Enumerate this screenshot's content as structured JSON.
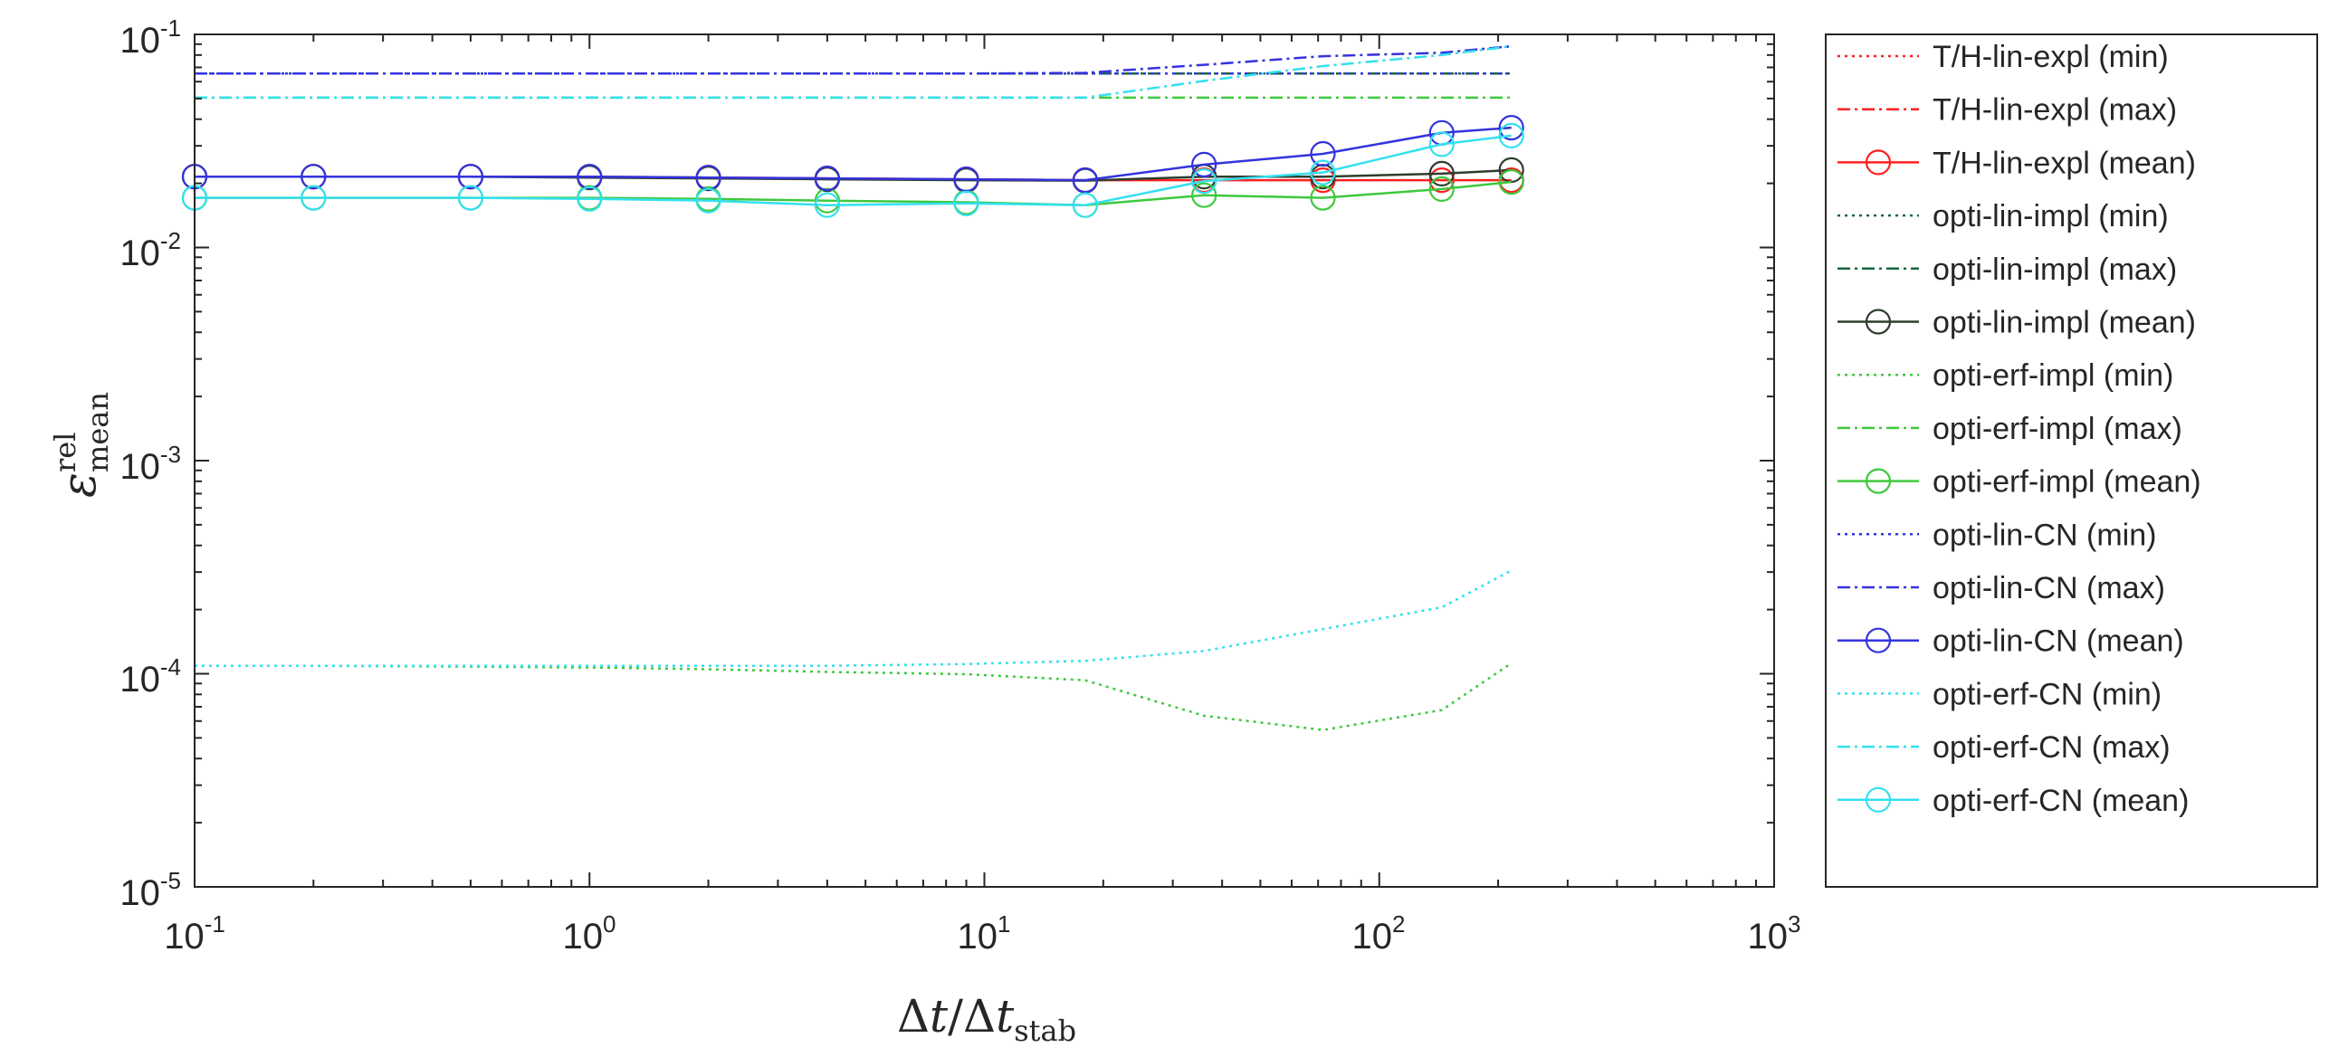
{
  "chart_data": {
    "type": "line",
    "x_scale": "log",
    "y_scale": "log",
    "xlim": [
      0.1,
      1000
    ],
    "ylim": [
      1e-05,
      0.1
    ],
    "x_ticks": [
      {
        "base": "10",
        "exp": "-1",
        "value": 0.1
      },
      {
        "base": "10",
        "exp": "0",
        "value": 1
      },
      {
        "base": "10",
        "exp": "1",
        "value": 10
      },
      {
        "base": "10",
        "exp": "2",
        "value": 100
      },
      {
        "base": "10",
        "exp": "3",
        "value": 1000
      }
    ],
    "y_ticks": [
      {
        "base": "10",
        "exp": "-1",
        "value": 0.1
      },
      {
        "base": "10",
        "exp": "-2",
        "value": 0.01
      },
      {
        "base": "10",
        "exp": "-3",
        "value": 0.001
      },
      {
        "base": "10",
        "exp": "-4",
        "value": 0.0001
      },
      {
        "base": "10",
        "exp": "-5",
        "value": 1e-05
      }
    ],
    "xlabel": {
      "delta1": "Δ",
      "t1": "t",
      "slash": "/",
      "delta2": "Δ",
      "t2": "t",
      "sub": "stab"
    },
    "ylabel": {
      "symbol": "ε",
      "sup": "rel",
      "sub": "mean"
    },
    "legend_position": "outside-right",
    "x_data": [
      0.1,
      0.2,
      0.5,
      1,
      2,
      4,
      9,
      18,
      36,
      72,
      144,
      216
    ],
    "series": [
      {
        "name": "T/H-lin-expl (min)",
        "color": "#ff2020",
        "style": "dotted",
        "marker": false,
        "values": [
          0.0655,
          0.0655,
          0.0655,
          0.0655,
          0.0655,
          0.0655,
          0.0655,
          0.0655,
          0.0655,
          0.0655,
          0.0655,
          0.0655
        ]
      },
      {
        "name": "T/H-lin-expl (max)",
        "color": "#ff2020",
        "style": "dashdot",
        "marker": false,
        "values": [
          0.0655,
          0.0655,
          0.0655,
          0.0655,
          0.0655,
          0.0655,
          0.0655,
          0.0655,
          0.0655,
          0.0655,
          0.0655,
          0.0655
        ]
      },
      {
        "name": "T/H-lin-expl (mean)",
        "color": "#ff2020",
        "style": "solid",
        "marker": true,
        "values": [
          0.0215,
          0.0215,
          0.0215,
          0.0215,
          0.0213,
          0.0211,
          0.0209,
          0.0207,
          0.0207,
          0.0207,
          0.0207,
          0.0207
        ]
      },
      {
        "name": "opti-lin-impl (min)",
        "color": "#1a6640",
        "style": "dotted",
        "marker": false,
        "values": [
          0.0655,
          0.0655,
          0.0655,
          0.0655,
          0.0655,
          0.0655,
          0.0655,
          0.0655,
          0.0655,
          0.0655,
          0.0655,
          0.0655
        ]
      },
      {
        "name": "opti-lin-impl (max)",
        "color": "#1a6640",
        "style": "dashdot",
        "marker": false,
        "values": [
          0.0655,
          0.0655,
          0.0655,
          0.0655,
          0.0655,
          0.0655,
          0.0655,
          0.0655,
          0.0655,
          0.0655,
          0.0655,
          0.0655
        ]
      },
      {
        "name": "opti-lin-impl (mean)",
        "color": "#2f3d2f",
        "style": "solid",
        "marker": true,
        "values": [
          0.0215,
          0.0215,
          0.0215,
          0.0213,
          0.0211,
          0.0209,
          0.0207,
          0.0206,
          0.0215,
          0.0215,
          0.0222,
          0.0231
        ]
      },
      {
        "name": "opti-erf-impl (min)",
        "color": "#3ec93e",
        "style": "dotted",
        "marker": false,
        "values": [
          0.000109,
          0.000109,
          0.000108,
          0.000107,
          0.000105,
          0.000102,
          9.95e-05,
          9.32e-05,
          6.35e-05,
          5.45e-05,
          6.75e-05,
          0.000112
        ]
      },
      {
        "name": "opti-erf-impl (max)",
        "color": "#3ec93e",
        "style": "dashdot",
        "marker": false,
        "values": [
          0.0505,
          0.0505,
          0.0505,
          0.0505,
          0.0505,
          0.0505,
          0.0505,
          0.0505,
          0.0505,
          0.0505,
          0.0505,
          0.0505
        ]
      },
      {
        "name": "opti-erf-impl (mean)",
        "color": "#3ec93e",
        "style": "solid",
        "marker": true,
        "values": [
          0.0171,
          0.0171,
          0.0171,
          0.0171,
          0.0169,
          0.0166,
          0.0163,
          0.0158,
          0.0176,
          0.0171,
          0.0188,
          0.0203
        ]
      },
      {
        "name": "opti-lin-CN (min)",
        "color": "#3333dd",
        "style": "dotted",
        "marker": false,
        "values": [
          0.0655,
          0.0655,
          0.0655,
          0.0655,
          0.0655,
          0.0655,
          0.0655,
          0.0655,
          0.0655,
          0.0655,
          0.0655,
          0.0655
        ]
      },
      {
        "name": "opti-lin-CN (max)",
        "color": "#3333dd",
        "style": "dashdot",
        "marker": false,
        "values": [
          0.0655,
          0.0655,
          0.0655,
          0.0655,
          0.0655,
          0.0655,
          0.0655,
          0.066,
          0.072,
          0.079,
          0.082,
          0.088
        ]
      },
      {
        "name": "opti-lin-CN (mean)",
        "color": "#3333dd",
        "style": "solid",
        "marker": true,
        "values": [
          0.0215,
          0.0215,
          0.0215,
          0.0215,
          0.0213,
          0.0211,
          0.0209,
          0.0207,
          0.0245,
          0.0275,
          0.0345,
          0.0365
        ]
      },
      {
        "name": "opti-erf-CN (min)",
        "color": "#33e0ee",
        "style": "dotted",
        "marker": false,
        "values": [
          0.000109,
          0.000109,
          0.000109,
          0.000109,
          0.000109,
          0.000109,
          0.000111,
          0.000115,
          0.000128,
          0.000162,
          0.000205,
          0.000305
        ]
      },
      {
        "name": "opti-erf-CN (max)",
        "color": "#33e0ee",
        "style": "dashdot",
        "marker": false,
        "values": [
          0.0505,
          0.0505,
          0.0505,
          0.0505,
          0.0505,
          0.0505,
          0.0505,
          0.0505,
          0.0605,
          0.071,
          0.08,
          0.088
        ]
      },
      {
        "name": "opti-erf-CN (mean)",
        "color": "#33e0ee",
        "style": "solid",
        "marker": true,
        "values": [
          0.0171,
          0.0171,
          0.0171,
          0.0169,
          0.0166,
          0.0158,
          0.0161,
          0.0158,
          0.0205,
          0.0225,
          0.0305,
          0.0335
        ]
      }
    ]
  }
}
